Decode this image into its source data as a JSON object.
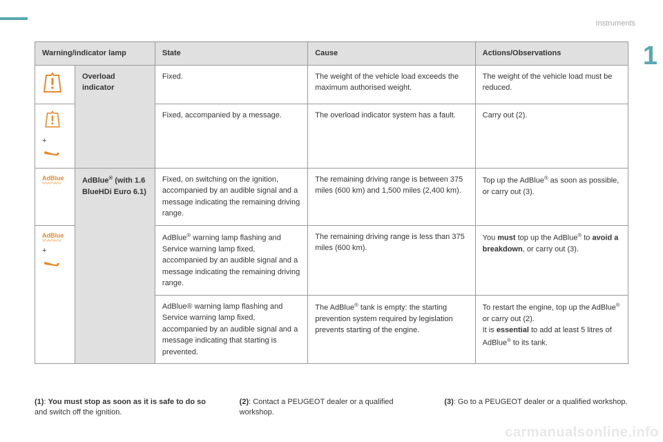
{
  "header": {
    "section": "Instruments",
    "chapter": "1"
  },
  "colors": {
    "accent": "#5aa8b0",
    "icon_orange": "#e78a2e",
    "header_bg": "#e0e0e0",
    "border": "#999999",
    "text": "#333333",
    "watermark": "#e8e8e8"
  },
  "table": {
    "headers": {
      "lamp": "Warning/indicator lamp",
      "state": "State",
      "cause": "Cause",
      "actions": "Actions/Observations"
    },
    "rows": [
      {
        "icon": "overload",
        "label": "Overload indicator",
        "state": "Fixed.",
        "cause": "The weight of the vehicle load exceeds the maximum authorised weight.",
        "actions": "The weight of the vehicle load must be reduced."
      },
      {
        "icon": "overload-wrench",
        "state": "Fixed, accompanied by a message.",
        "cause": "The overload indicator system has a fault.",
        "actions": "Carry out (2)."
      },
      {
        "icon": "adblue",
        "label_html": "AdBlue<sup>®</sup> (with 1.6 BlueHDi Euro 6.1)",
        "state": "Fixed, on switching on the ignition, accompanied by an audible signal and a message indicating the remaining driving range.",
        "cause": "The remaining driving range is between 375 miles (600 km) and 1,500 miles (2,400 km).",
        "actions_html": "Top up the AdBlue<sup>®</sup> as soon as possible, or carry out (3)."
      },
      {
        "icon": "adblue-wrench",
        "state_html": "AdBlue<sup>®</sup> warning lamp flashing and Service warning lamp fixed, accompanied by an audible signal and a message indicating the remaining driving range.",
        "cause": "The remaining driving range is less than 375 miles (600 km).",
        "actions_html": "You <b>must</b> top up the AdBlue<sup>®</sup> to <b>avoid a breakdown</b>, or carry out (3)."
      },
      {
        "state_html": "AdBlue® warning lamp flashing and Service warning lamp fixed, accompanied by an audible signal and a message indicating that starting is prevented.",
        "cause_html": "The AdBlue<sup>®</sup> tank is empty: the starting prevention system required by legislation prevents starting of the engine.",
        "actions_html": "To restart the engine, top up the AdBlue<sup>®</sup> or carry out (2).<br>It is <b>essential</b> to add at least 5 litres of AdBlue<sup>®</sup> to its tank."
      }
    ]
  },
  "footnotes": {
    "f1_html": "<b>(1)</b>: <b>You must stop as soon as it is safe to do so</b> and switch off the ignition.",
    "f2_html": "<b>(2)</b>: Contact a PEUGEOT dealer or a qualified workshop.",
    "f3_html": "<b>(3)</b>: Go to a PEUGEOT dealer or a qualified workshop."
  },
  "watermark": "carmanualsonline.info"
}
